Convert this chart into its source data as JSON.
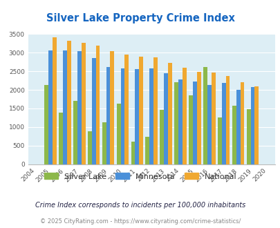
{
  "title": "Silver Lake Property Crime Index",
  "title_color": "#1565c0",
  "years": [
    2004,
    2005,
    2006,
    2007,
    2008,
    2009,
    2010,
    2011,
    2012,
    2013,
    2014,
    2015,
    2016,
    2017,
    2018,
    2019,
    2020
  ],
  "silver_lake": [
    0,
    2130,
    1390,
    1700,
    880,
    1130,
    1630,
    600,
    730,
    1460,
    2200,
    1850,
    2620,
    1250,
    1570,
    1490,
    0
  ],
  "minnesota": [
    0,
    3070,
    3070,
    3040,
    2850,
    2620,
    2570,
    2560,
    2580,
    2450,
    2290,
    2230,
    2140,
    2180,
    2000,
    2070,
    0
  ],
  "national": [
    0,
    3410,
    3330,
    3260,
    3200,
    3040,
    2950,
    2900,
    2870,
    2720,
    2600,
    2490,
    2470,
    2380,
    2210,
    2100,
    0
  ],
  "silver_lake_color": "#8db84a",
  "minnesota_color": "#4a90d9",
  "national_color": "#f0a830",
  "background_color": "#ddeef5",
  "ylim": [
    0,
    3500
  ],
  "yticks": [
    0,
    500,
    1000,
    1500,
    2000,
    2500,
    3000,
    3500
  ],
  "footnote1": "Crime Index corresponds to incidents per 100,000 inhabitants",
  "footnote2": "© 2025 CityRating.com - https://www.cityrating.com/crime-statistics/",
  "footnote2_color": "#4a90d9",
  "legend_labels": [
    "Silver Lake",
    "Minnesota",
    "National"
  ]
}
